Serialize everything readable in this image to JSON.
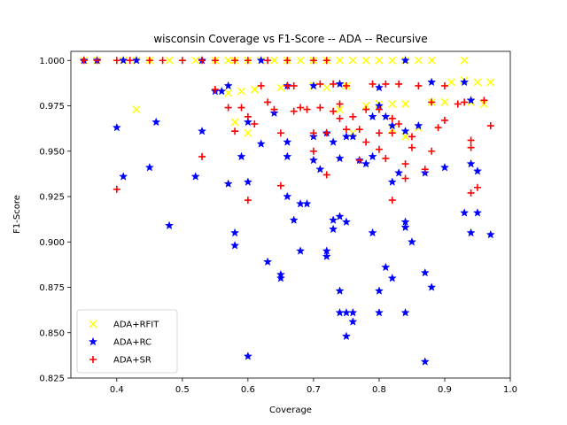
{
  "chart_data": {
    "type": "scatter",
    "title": "wisconsin Coverage vs F1-Score -- ADA -- Recursive",
    "xlabel": "Coverage",
    "ylabel": "F1-Score",
    "xlim": [
      0.33,
      1.0
    ],
    "ylim": [
      0.825,
      1.005
    ],
    "xticks": [
      "0.4",
      "0.5",
      "0.6",
      "0.7",
      "0.8",
      "0.9",
      "1.0"
    ],
    "yticks": [
      "0.825",
      "0.850",
      "0.875",
      "0.900",
      "0.925",
      "0.950",
      "0.975",
      "1.000"
    ],
    "grid": false,
    "legend_position": "lower-left",
    "series": [
      {
        "name": "ADA+RFIT",
        "marker": "x",
        "color": "#ffff00",
        "points": [
          [
            0.35,
            1.0
          ],
          [
            0.37,
            1.0
          ],
          [
            0.41,
            1.0
          ],
          [
            0.43,
            1.0
          ],
          [
            0.45,
            1.0
          ],
          [
            0.48,
            1.0
          ],
          [
            0.52,
            1.0
          ],
          [
            0.55,
            1.0
          ],
          [
            0.57,
            1.0
          ],
          [
            0.58,
            1.0
          ],
          [
            0.6,
            1.0
          ],
          [
            0.62,
            1.0
          ],
          [
            0.64,
            1.0
          ],
          [
            0.66,
            1.0
          ],
          [
            0.68,
            1.0
          ],
          [
            0.7,
            1.0
          ],
          [
            0.72,
            1.0
          ],
          [
            0.74,
            1.0
          ],
          [
            0.76,
            1.0
          ],
          [
            0.78,
            1.0
          ],
          [
            0.8,
            1.0
          ],
          [
            0.82,
            1.0
          ],
          [
            0.84,
            1.0
          ],
          [
            0.86,
            1.0
          ],
          [
            0.88,
            1.0
          ],
          [
            0.93,
            1.0
          ],
          [
            0.43,
            0.973
          ],
          [
            0.57,
            0.982
          ],
          [
            0.59,
            0.983
          ],
          [
            0.6,
            0.96
          ],
          [
            0.61,
            0.984
          ],
          [
            0.65,
            0.985
          ],
          [
            0.7,
            0.986
          ],
          [
            0.72,
            0.985
          ],
          [
            0.75,
            0.986
          ],
          [
            0.78,
            0.975
          ],
          [
            0.8,
            0.976
          ],
          [
            0.82,
            0.976
          ],
          [
            0.84,
            0.976
          ],
          [
            0.82,
            0.962
          ],
          [
            0.84,
            0.958
          ],
          [
            0.86,
            0.963
          ],
          [
            0.88,
            0.977
          ],
          [
            0.9,
            0.977
          ],
          [
            0.91,
            0.988
          ],
          [
            0.93,
            0.989
          ],
          [
            0.95,
            0.988
          ],
          [
            0.97,
            0.988
          ],
          [
            0.96,
            0.976
          ],
          [
            0.94,
            0.977
          ],
          [
            0.58,
            0.966
          ],
          [
            0.74,
            0.973
          ],
          [
            0.76,
            0.96
          ]
        ]
      },
      {
        "name": "ADA+RC",
        "marker": "star",
        "color": "#0000ff",
        "points": [
          [
            0.35,
            1.0
          ],
          [
            0.37,
            1.0
          ],
          [
            0.41,
            1.0
          ],
          [
            0.43,
            1.0
          ],
          [
            0.53,
            1.0
          ],
          [
            0.62,
            1.0
          ],
          [
            0.84,
            1.0
          ],
          [
            0.4,
            0.963
          ],
          [
            0.41,
            0.936
          ],
          [
            0.45,
            0.941
          ],
          [
            0.46,
            0.966
          ],
          [
            0.48,
            0.909
          ],
          [
            0.52,
            0.936
          ],
          [
            0.53,
            0.961
          ],
          [
            0.55,
            0.983
          ],
          [
            0.56,
            0.983
          ],
          [
            0.57,
            0.932
          ],
          [
            0.57,
            0.986
          ],
          [
            0.58,
            0.905
          ],
          [
            0.58,
            0.898
          ],
          [
            0.59,
            0.947
          ],
          [
            0.6,
            0.966
          ],
          [
            0.6,
            0.933
          ],
          [
            0.6,
            0.837
          ],
          [
            0.62,
            0.954
          ],
          [
            0.63,
            0.889
          ],
          [
            0.64,
            0.971
          ],
          [
            0.65,
            0.88
          ],
          [
            0.65,
            0.882
          ],
          [
            0.66,
            0.925
          ],
          [
            0.66,
            0.947
          ],
          [
            0.66,
            0.955
          ],
          [
            0.67,
            0.912
          ],
          [
            0.68,
            0.895
          ],
          [
            0.68,
            0.921
          ],
          [
            0.69,
            0.921
          ],
          [
            0.7,
            0.958
          ],
          [
            0.7,
            0.945
          ],
          [
            0.71,
            0.94
          ],
          [
            0.72,
            0.895
          ],
          [
            0.72,
            0.892
          ],
          [
            0.73,
            0.907
          ],
          [
            0.73,
            0.912
          ],
          [
            0.74,
            0.914
          ],
          [
            0.74,
            0.873
          ],
          [
            0.74,
            0.861
          ],
          [
            0.75,
            0.848
          ],
          [
            0.75,
            0.861
          ],
          [
            0.76,
            0.856
          ],
          [
            0.76,
            0.861
          ],
          [
            0.75,
            0.911
          ],
          [
            0.74,
            0.946
          ],
          [
            0.75,
            0.958
          ],
          [
            0.76,
            0.958
          ],
          [
            0.77,
            0.945
          ],
          [
            0.78,
            0.943
          ],
          [
            0.79,
            0.969
          ],
          [
            0.79,
            0.905
          ],
          [
            0.8,
            0.873
          ],
          [
            0.8,
            0.861
          ],
          [
            0.81,
            0.886
          ],
          [
            0.82,
            0.933
          ],
          [
            0.82,
            0.88
          ],
          [
            0.83,
            0.938
          ],
          [
            0.84,
            0.911
          ],
          [
            0.84,
            0.908
          ],
          [
            0.85,
            0.9
          ],
          [
            0.84,
            0.861
          ],
          [
            0.87,
            0.834
          ],
          [
            0.87,
            0.883
          ],
          [
            0.87,
            0.938
          ],
          [
            0.88,
            0.875
          ],
          [
            0.9,
            0.941
          ],
          [
            0.93,
            0.916
          ],
          [
            0.94,
            0.943
          ],
          [
            0.94,
            0.905
          ],
          [
            0.95,
            0.916
          ],
          [
            0.95,
            0.939
          ],
          [
            0.97,
            0.904
          ],
          [
            0.79,
            0.947
          ],
          [
            0.8,
            0.975
          ],
          [
            0.81,
            0.969
          ],
          [
            0.82,
            0.964
          ],
          [
            0.84,
            0.961
          ],
          [
            0.86,
            0.964
          ],
          [
            0.88,
            0.988
          ],
          [
            0.93,
            0.988
          ],
          [
            0.94,
            0.978
          ],
          [
            0.72,
            0.96
          ],
          [
            0.73,
            0.955
          ],
          [
            0.7,
            0.986
          ],
          [
            0.66,
            0.986
          ],
          [
            0.74,
            0.987
          ],
          [
            0.8,
            0.985
          ]
        ]
      },
      {
        "name": "ADA+SR",
        "marker": "plus",
        "color": "#ff0000",
        "points": [
          [
            0.35,
            1.0
          ],
          [
            0.37,
            1.0
          ],
          [
            0.4,
            1.0
          ],
          [
            0.42,
            1.0
          ],
          [
            0.45,
            1.0
          ],
          [
            0.47,
            1.0
          ],
          [
            0.5,
            1.0
          ],
          [
            0.53,
            1.0
          ],
          [
            0.55,
            1.0
          ],
          [
            0.58,
            1.0
          ],
          [
            0.6,
            1.0
          ],
          [
            0.63,
            1.0
          ],
          [
            0.66,
            1.0
          ],
          [
            0.7,
            1.0
          ],
          [
            0.72,
            1.0
          ],
          [
            0.4,
            0.929
          ],
          [
            0.53,
            0.947
          ],
          [
            0.55,
            0.984
          ],
          [
            0.57,
            0.974
          ],
          [
            0.58,
            0.961
          ],
          [
            0.59,
            0.974
          ],
          [
            0.6,
            0.969
          ],
          [
            0.6,
            0.923
          ],
          [
            0.61,
            0.965
          ],
          [
            0.62,
            0.986
          ],
          [
            0.63,
            0.977
          ],
          [
            0.64,
            0.973
          ],
          [
            0.65,
            0.96
          ],
          [
            0.65,
            0.931
          ],
          [
            0.66,
            0.986
          ],
          [
            0.67,
            0.986
          ],
          [
            0.67,
            0.972
          ],
          [
            0.68,
            0.974
          ],
          [
            0.69,
            0.973
          ],
          [
            0.7,
            0.96
          ],
          [
            0.7,
            0.95
          ],
          [
            0.71,
            0.987
          ],
          [
            0.71,
            0.974
          ],
          [
            0.72,
            0.937
          ],
          [
            0.72,
            0.96
          ],
          [
            0.73,
            0.987
          ],
          [
            0.73,
            0.972
          ],
          [
            0.74,
            0.976
          ],
          [
            0.74,
            0.968
          ],
          [
            0.75,
            0.962
          ],
          [
            0.75,
            0.986
          ],
          [
            0.76,
            0.969
          ],
          [
            0.77,
            0.962
          ],
          [
            0.77,
            0.945
          ],
          [
            0.78,
            0.973
          ],
          [
            0.78,
            0.955
          ],
          [
            0.79,
            0.987
          ],
          [
            0.8,
            0.96
          ],
          [
            0.8,
            0.973
          ],
          [
            0.81,
            0.987
          ],
          [
            0.82,
            0.96
          ],
          [
            0.82,
            0.968
          ],
          [
            0.82,
            0.923
          ],
          [
            0.83,
            0.987
          ],
          [
            0.84,
            0.943
          ],
          [
            0.84,
            0.935
          ],
          [
            0.85,
            0.952
          ],
          [
            0.86,
            0.986
          ],
          [
            0.87,
            0.94
          ],
          [
            0.88,
            0.95
          ],
          [
            0.88,
            0.977
          ],
          [
            0.89,
            0.963
          ],
          [
            0.9,
            0.967
          ],
          [
            0.9,
            0.986
          ],
          [
            0.92,
            0.976
          ],
          [
            0.93,
            0.977
          ],
          [
            0.94,
            0.956
          ],
          [
            0.94,
            0.952
          ],
          [
            0.94,
            0.927
          ],
          [
            0.95,
            0.93
          ],
          [
            0.96,
            0.978
          ],
          [
            0.97,
            0.964
          ],
          [
            0.81,
            0.946
          ],
          [
            0.8,
            0.951
          ],
          [
            0.83,
            0.965
          ],
          [
            0.85,
            0.958
          ]
        ]
      }
    ]
  }
}
